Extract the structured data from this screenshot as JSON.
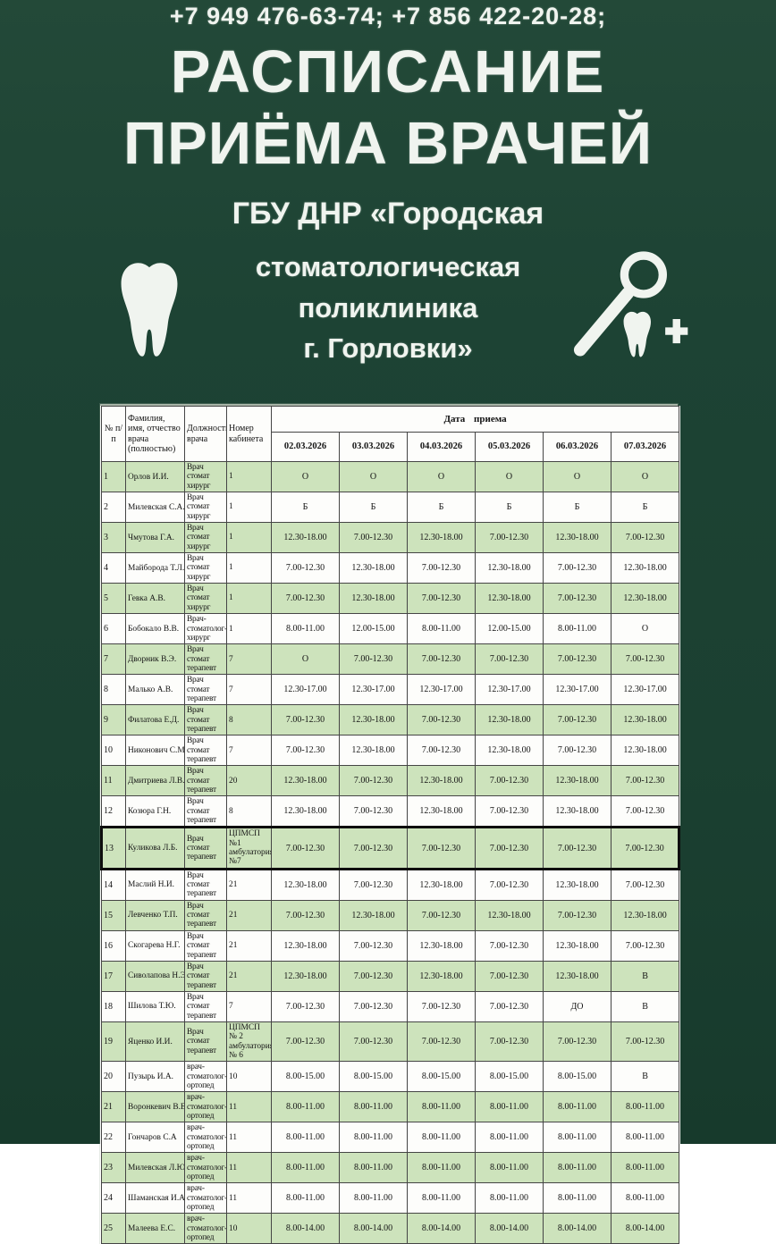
{
  "header": {
    "phones": "+7 949 476-63-74; +7 856 422-20-28;",
    "title_line1": "РАСПИСАНИЕ",
    "title_line2": "ПРИЁМА ВРАЧЕЙ",
    "org_line1": "ГБУ ДНР «Городская",
    "org_line2": "стоматологическая",
    "org_line3": "поликлиника",
    "org_line4": "г. Горловки»",
    "icons": [
      "tooth-icon",
      "dental-mirror-tooth-plus-icon"
    ]
  },
  "colors": {
    "background": "#1d4334",
    "row_highlight": "#cde3bc",
    "table_border": "#454545",
    "light_text": "#f0f4ef"
  },
  "table": {
    "headers": [
      "№ п/п",
      "Фамилия, имя, отчество врача (полностью)",
      "Должность врача",
      "Номер кабинета"
    ],
    "date_group": "Дата приема",
    "dates": [
      "02.03.2026",
      "03.03.2026",
      "04.03.2026",
      "05.03.2026",
      "06.03.2026",
      "07.03.2026"
    ],
    "rows": [
      {
        "num": "1",
        "name": "Орлов И.И.",
        "position": "Врач стомат хирург",
        "cabinet": "1",
        "schedule": [
          "О",
          "О",
          "О",
          "О",
          "О",
          "О"
        ],
        "highlighted": true,
        "thick_border": false
      },
      {
        "num": "2",
        "name": "Милевская С.А.",
        "position": "Врач стомат хирург",
        "cabinet": "1",
        "schedule": [
          "Б",
          "Б",
          "Б",
          "Б",
          "Б",
          "Б"
        ],
        "highlighted": false,
        "thick_border": false
      },
      {
        "num": "3",
        "name": "Чмутова Г.А.",
        "position": "Врач стомат хирург",
        "cabinet": "1",
        "schedule": [
          "12.30-18.00",
          "7.00-12.30",
          "12.30-18.00",
          "7.00-12.30",
          "12.30-18.00",
          "7.00-12.30"
        ],
        "highlighted": true,
        "thick_border": false
      },
      {
        "num": "4",
        "name": "Майборода Т.Л.",
        "position": "Врач стомат хирург",
        "cabinet": "1",
        "schedule": [
          "7.00-12.30",
          "12.30-18.00",
          "7.00-12.30",
          "12.30-18.00",
          "7.00-12.30",
          "12.30-18.00"
        ],
        "highlighted": false,
        "thick_border": false
      },
      {
        "num": "5",
        "name": "Гевка А.В.",
        "position": "Врач стомат хирург",
        "cabinet": "1",
        "schedule": [
          "7.00-12.30",
          "12.30-18.00",
          "7.00-12.30",
          "12.30-18.00",
          "7.00-12.30",
          "12.30-18.00"
        ],
        "highlighted": true,
        "thick_border": false
      },
      {
        "num": "6",
        "name": "Бобокало В.В.",
        "position": "Врач-стоматолог-хирург",
        "cabinet": "1",
        "schedule": [
          "8.00-11.00",
          "12.00-15.00",
          "8.00-11.00",
          "12.00-15.00",
          "8.00-11.00",
          "О"
        ],
        "highlighted": false,
        "thick_border": false
      },
      {
        "num": "7",
        "name": "Дворник В.Э.",
        "position": "Врач стомат терапевт",
        "cabinet": "7",
        "schedule": [
          "О",
          "7.00-12.30",
          "7.00-12.30",
          "7.00-12.30",
          "7.00-12.30",
          "7.00-12.30"
        ],
        "highlighted": true,
        "thick_border": false
      },
      {
        "num": "8",
        "name": "Малько А.В.",
        "position": "Врач стомат терапевт",
        "cabinet": "7",
        "schedule": [
          "12.30-17.00",
          "12.30-17.00",
          "12.30-17.00",
          "12.30-17.00",
          "12.30-17.00",
          "12.30-17.00"
        ],
        "highlighted": false,
        "thick_border": false
      },
      {
        "num": "9",
        "name": "Филатова Е.Д.",
        "position": "Врач стомат терапевт",
        "cabinet": "8",
        "schedule": [
          "7.00-12.30",
          "12.30-18.00",
          "7.00-12.30",
          "12.30-18.00",
          "7.00-12.30",
          "12.30-18.00"
        ],
        "highlighted": true,
        "thick_border": false
      },
      {
        "num": "10",
        "name": "Никонович С.М.",
        "position": "Врач стомат терапевт",
        "cabinet": "7",
        "schedule": [
          "7.00-12.30",
          "12.30-18.00",
          "7.00-12.30",
          "12.30-18.00",
          "7.00-12.30",
          "12.30-18.00"
        ],
        "highlighted": false,
        "thick_border": false
      },
      {
        "num": "11",
        "name": "Дмитриева Л.В.",
        "position": "Врач стомат терапевт",
        "cabinet": "20",
        "schedule": [
          "12.30-18.00",
          "7.00-12.30",
          "12.30-18.00",
          "7.00-12.30",
          "12.30-18.00",
          "7.00-12.30"
        ],
        "highlighted": true,
        "thick_border": false
      },
      {
        "num": "12",
        "name": "Козюра Г.Н.",
        "position": "Врач стомат терапевт",
        "cabinet": "8",
        "schedule": [
          "12.30-18.00",
          "7.00-12.30",
          "12.30-18.00",
          "7.00-12.30",
          "12.30-18.00",
          "7.00-12.30"
        ],
        "highlighted": false,
        "thick_border": false
      },
      {
        "num": "13",
        "name": "Куликова Л.Б.",
        "position": "Врач стомат терапевт",
        "cabinet": "ЦПМСП №1 амбулатория №7",
        "schedule": [
          "7.00-12.30",
          "7.00-12.30",
          "7.00-12.30",
          "7.00-12.30",
          "7.00-12.30",
          "7.00-12.30"
        ],
        "highlighted": true,
        "thick_border": true
      },
      {
        "num": "14",
        "name": "Маслий Н.И.",
        "position": "Врач стомат терапевт",
        "cabinet": "21",
        "schedule": [
          "12.30-18.00",
          "7.00-12.30",
          "12.30-18.00",
          "7.00-12.30",
          "12.30-18.00",
          "7.00-12.30"
        ],
        "highlighted": false,
        "thick_border": false
      },
      {
        "num": "15",
        "name": "Левченко Т.П.",
        "position": "Врач стомат терапевт",
        "cabinet": "21",
        "schedule": [
          "7.00-12.30",
          "12.30-18.00",
          "7.00-12.30",
          "12.30-18.00",
          "7.00-12.30",
          "12.30-18.00"
        ],
        "highlighted": true,
        "thick_border": false
      },
      {
        "num": "16",
        "name": "Скогарева Н.Г.",
        "position": "Врач стомат терапевт",
        "cabinet": "21",
        "schedule": [
          "12.30-18.00",
          "7.00-12.30",
          "12.30-18.00",
          "7.00-12.30",
          "12.30-18.00",
          "7.00-12.30"
        ],
        "highlighted": false,
        "thick_border": false
      },
      {
        "num": "17",
        "name": "Сиволапова Н.Э.",
        "position": "Врач стомат терапевт",
        "cabinet": "21",
        "schedule": [
          "12.30-18.00",
          "7.00-12.30",
          "12.30-18.00",
          "7.00-12.30",
          "12.30-18.00",
          "В"
        ],
        "highlighted": true,
        "thick_border": false
      },
      {
        "num": "18",
        "name": "Шилова Т.Ю.",
        "position": "Врач стомат терапевт",
        "cabinet": "7",
        "schedule": [
          "7.00-12.30",
          "7.00-12.30",
          "7.00-12.30",
          "7.00-12.30",
          "ДО",
          "В"
        ],
        "highlighted": false,
        "thick_border": false
      },
      {
        "num": "19",
        "name": "Яценко И.И.",
        "position": "Врач стомат терапевт",
        "cabinet": "ЦПМСП № 2 амбулатория № 6",
        "schedule": [
          "7.00-12.30",
          "7.00-12.30",
          "7.00-12.30",
          "7.00-12.30",
          "7.00-12.30",
          "7.00-12.30"
        ],
        "highlighted": true,
        "thick_border": false
      },
      {
        "num": "20",
        "name": "Пузырь И.А.",
        "position": "врач-стоматолог-ортопед",
        "cabinet": "10",
        "schedule": [
          "8.00-15.00",
          "8.00-15.00",
          "8.00-15.00",
          "8.00-15.00",
          "8.00-15.00",
          "В"
        ],
        "highlighted": false,
        "thick_border": false
      },
      {
        "num": "21",
        "name": "Воронкевич В.В.",
        "position": "врач-стоматолог-ортопед",
        "cabinet": "11",
        "schedule": [
          "8.00-11.00",
          "8.00-11.00",
          "8.00-11.00",
          "8.00-11.00",
          "8.00-11.00",
          "8.00-11.00"
        ],
        "highlighted": true,
        "thick_border": false
      },
      {
        "num": "22",
        "name": "Гончаров С.А",
        "position": "врач-стоматолог-ортопед",
        "cabinet": "11",
        "schedule": [
          "8.00-11.00",
          "8.00-11.00",
          "8.00-11.00",
          "8.00-11.00",
          "8.00-11.00",
          "8.00-11.00"
        ],
        "highlighted": false,
        "thick_border": false
      },
      {
        "num": "23",
        "name": "Милевская Л.Ю.",
        "position": "врач-стоматолог-ортопед",
        "cabinet": "11",
        "schedule": [
          "8.00-11.00",
          "8.00-11.00",
          "8.00-11.00",
          "8.00-11.00",
          "8.00-11.00",
          "8.00-11.00"
        ],
        "highlighted": true,
        "thick_border": false
      },
      {
        "num": "24",
        "name": "Шаманская И.А.",
        "position": "врач-стоматолог-ортопед",
        "cabinet": "11",
        "schedule": [
          "8.00-11.00",
          "8.00-11.00",
          "8.00-11.00",
          "8.00-11.00",
          "8.00-11.00",
          "8.00-11.00"
        ],
        "highlighted": false,
        "thick_border": false
      },
      {
        "num": "25",
        "name": "Малеева Е.С.",
        "position": "врач-стоматолог-ортопед",
        "cabinet": "10",
        "schedule": [
          "8.00-14.00",
          "8.00-14.00",
          "8.00-14.00",
          "8.00-14.00",
          "8.00-14.00",
          "8.00-14.00"
        ],
        "highlighted": true,
        "thick_border": false
      }
    ]
  }
}
